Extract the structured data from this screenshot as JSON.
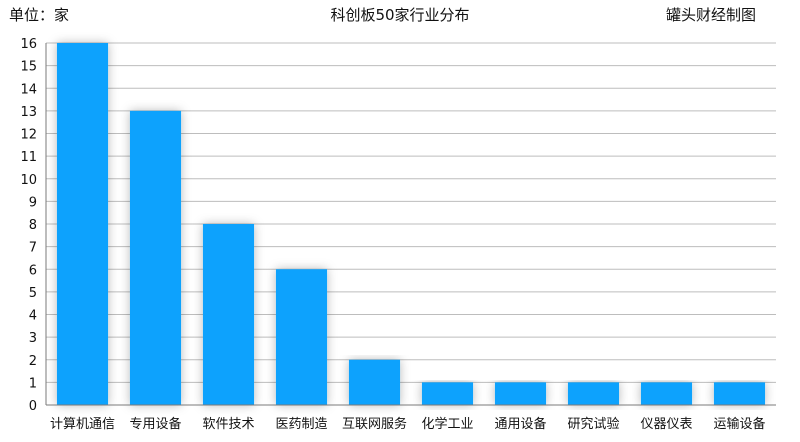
{
  "header": {
    "unit_label": "单位：家",
    "title": "科创板50家行业分布",
    "source": "罐头财经制图"
  },
  "colors": {
    "bar": "#0aa2fd",
    "grid": "#bdbdbd",
    "axis": "#7a7a7a",
    "text": "#111111"
  },
  "chart_data": {
    "type": "bar",
    "title": "科创板50家行业分布",
    "xlabel": "",
    "ylabel": "单位：家",
    "categories": [
      "计算机通信",
      "专用设备",
      "软件技术",
      "医药制造",
      "互联网服务",
      "化学工业",
      "通用设备",
      "研究试验",
      "仪器仪表",
      "运输设备"
    ],
    "values": [
      16,
      13,
      8,
      6,
      2,
      1,
      1,
      1,
      1,
      1
    ],
    "ylim": [
      0,
      16
    ],
    "yticks": [
      0,
      1,
      2,
      3,
      4,
      5,
      6,
      7,
      8,
      9,
      10,
      11,
      12,
      13,
      14,
      15,
      16
    ],
    "grid": true,
    "legend": "none"
  }
}
